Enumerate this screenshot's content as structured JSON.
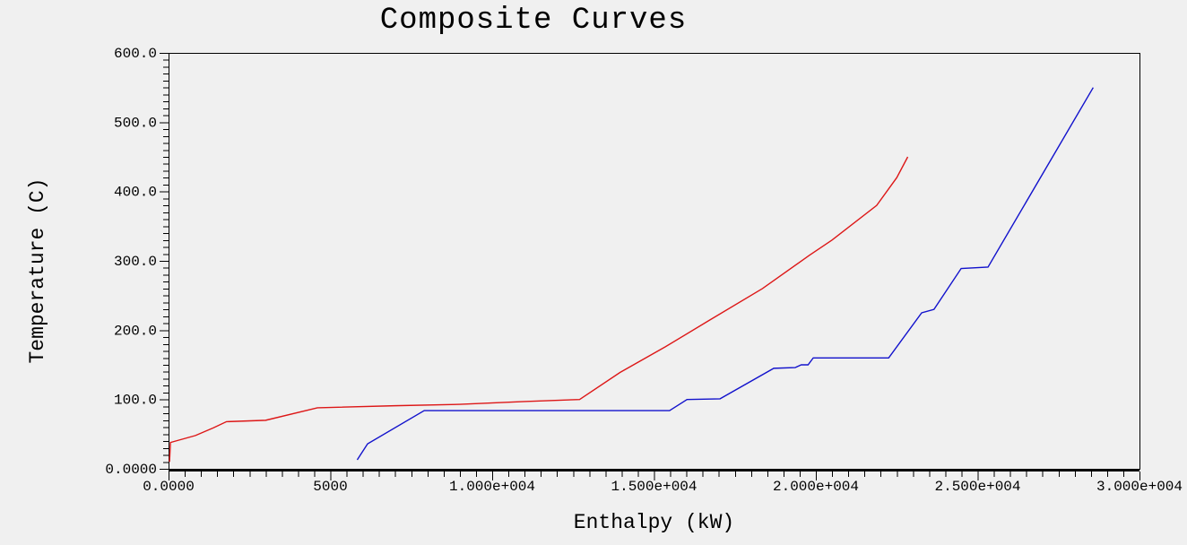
{
  "chart_data": {
    "type": "line",
    "title": "Composite Curves",
    "xlabel": "Enthalpy (kW)",
    "ylabel": "Temperature (C)",
    "xlim": [
      0,
      30000
    ],
    "ylim": [
      0,
      600
    ],
    "x_major_ticks": [
      0,
      5000,
      10000,
      15000,
      20000,
      25000,
      30000
    ],
    "x_tick_labels": [
      "0.0000",
      "5000",
      "1.000e+004",
      "1.500e+004",
      "2.000e+004",
      "2.500e+004",
      "3.000e+004"
    ],
    "x_minor_step": 500,
    "y_major_ticks": [
      0,
      100,
      200,
      300,
      400,
      500,
      600
    ],
    "y_tick_labels": [
      "0.0000",
      "100.0",
      "200.0",
      "300.0",
      "400.0",
      "500.0",
      "600.0"
    ],
    "y_minor_step": 10,
    "grid": false,
    "legend": "none",
    "background": "#f0f0f0",
    "axis_color": "#000000",
    "series": [
      {
        "id": "red-curve",
        "color": "#dd1717",
        "points": [
          [
            30,
            10
          ],
          [
            60,
            38
          ],
          [
            830,
            48
          ],
          [
            1380,
            59
          ],
          [
            1790,
            68
          ],
          [
            3000,
            70
          ],
          [
            4600,
            88
          ],
          [
            7000,
            91
          ],
          [
            9000,
            93
          ],
          [
            11000,
            97
          ],
          [
            12700,
            100
          ],
          [
            13950,
            139
          ],
          [
            15350,
            176
          ],
          [
            16700,
            214
          ],
          [
            18350,
            260
          ],
          [
            19800,
            308
          ],
          [
            20500,
            330
          ],
          [
            21880,
            380
          ],
          [
            22500,
            420
          ],
          [
            22840,
            450
          ]
        ]
      },
      {
        "id": "blue-curve",
        "color": "#1212cc",
        "points": [
          [
            5830,
            13
          ],
          [
            6150,
            36
          ],
          [
            7900,
            84
          ],
          [
            15480,
            84
          ],
          [
            16020,
            100
          ],
          [
            17040,
            101
          ],
          [
            18700,
            145
          ],
          [
            19360,
            146
          ],
          [
            19550,
            150
          ],
          [
            19760,
            150
          ],
          [
            19920,
            160
          ],
          [
            22250,
            160
          ],
          [
            23270,
            225
          ],
          [
            23650,
            230
          ],
          [
            24490,
            289
          ],
          [
            25320,
            291
          ],
          [
            28570,
            550
          ]
        ]
      }
    ]
  }
}
